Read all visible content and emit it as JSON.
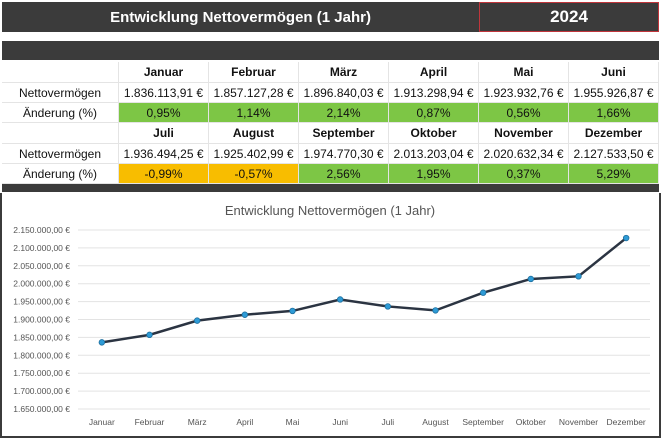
{
  "header": {
    "title": "Entwicklung Nettovermögen (1 Jahr)",
    "year": "2024"
  },
  "table": {
    "row_labels": {
      "net": "Nettovermögen",
      "change": "Änderung (%)"
    },
    "blocks": [
      {
        "months": [
          "Januar",
          "Februar",
          "März",
          "April",
          "Mai",
          "Juni"
        ],
        "net": [
          "1.836.113,91 €",
          "1.857.127,28 €",
          "1.896.840,03 €",
          "1.913.298,94 €",
          "1.923.932,76 €",
          "1.955.926,87 €"
        ],
        "change": [
          "0,95%",
          "1,14%",
          "2,14%",
          "0,87%",
          "0,56%",
          "1,66%"
        ]
      },
      {
        "months": [
          "Juli",
          "August",
          "September",
          "Oktober",
          "November",
          "Dezember"
        ],
        "net": [
          "1.936.494,25 €",
          "1.925.402,99 €",
          "1.974.770,30 €",
          "2.013.203,04 €",
          "2.020.632,34 €",
          "2.127.533,50 €"
        ],
        "change": [
          "-0,99%",
          "-0,57%",
          "2,56%",
          "1,95%",
          "0,37%",
          "5,29%"
        ]
      }
    ]
  },
  "colors": {
    "header": "#3b3b3b",
    "positive": "#7dc645",
    "negative": "#f8bd00",
    "line": "#2b3442",
    "marker": "#2e9bd6",
    "year_border": "#c0353b"
  },
  "chart_data": {
    "type": "line",
    "title": "Entwicklung Nettovermögen (1 Jahr)",
    "categories": [
      "Januar",
      "Februar",
      "März",
      "April",
      "Mai",
      "Juni",
      "Juli",
      "August",
      "September",
      "Oktober",
      "November",
      "Dezember"
    ],
    "values": [
      1836113.91,
      1857127.28,
      1896840.03,
      1913298.94,
      1923932.76,
      1955926.87,
      1936494.25,
      1925402.99,
      1974770.3,
      2013203.04,
      2020632.34,
      2127533.5
    ],
    "ylim": [
      1650000,
      2150000
    ],
    "yticks": [
      "1.650.000,00 €",
      "1.700.000,00 €",
      "1.750.000,00 €",
      "1.800.000,00 €",
      "1.850.000,00 €",
      "1.900.000,00 €",
      "1.950.000,00 €",
      "2.000.000,00 €",
      "2.050.000,00 €",
      "2.100.000,00 €",
      "2.150.000,00 €"
    ],
    "grid": true,
    "legend": "none"
  }
}
